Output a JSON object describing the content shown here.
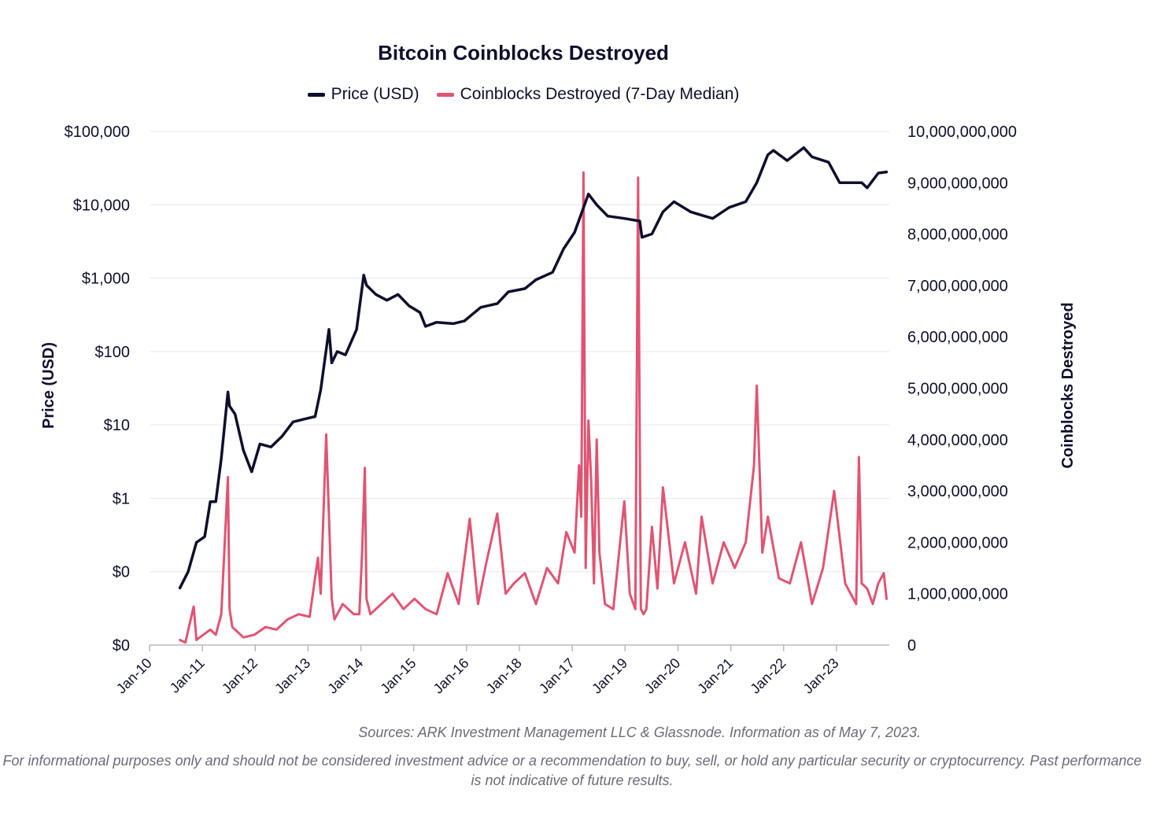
{
  "chart_data": {
    "type": "line",
    "title": "Bitcoin Coinblocks Destroyed",
    "legend_position": "top-center",
    "grid": true,
    "x_ticks": [
      "Jan-10",
      "Jan-11",
      "Jan-12",
      "Jan-13",
      "Jan-14",
      "Jan-15",
      "Jan-16",
      "Jan-18",
      "Jan-17",
      "Jan-19",
      "Jan-20",
      "Jan-21",
      "Jan-22",
      "Jan-23"
    ],
    "y_left": {
      "label": "Price (USD)",
      "scale": "log",
      "ticks": [
        "$0",
        "$0",
        "$1",
        "$10",
        "$100",
        "$1,000",
        "$10,000",
        "$100,000"
      ]
    },
    "y_right": {
      "label": "Coinblocks Destroyed",
      "ylim": [
        0,
        10000000000
      ],
      "ticks": [
        "0",
        "1,000,000,000",
        "2,000,000,000",
        "3,000,000,000",
        "4,000,000,000",
        "5,000,000,000",
        "6,000,000,000",
        "7,000,000,000",
        "8,000,000,000",
        "9,000,000,000",
        "10,000,000,000"
      ]
    },
    "series": [
      {
        "name": "Price (USD)",
        "color": "#0f0f2d",
        "axis": "left",
        "x": [
          2010.55,
          2010.7,
          2010.85,
          2011.0,
          2011.1,
          2011.2,
          2011.3,
          2011.42,
          2011.45,
          2011.55,
          2011.7,
          2011.85,
          2012.0,
          2012.2,
          2012.4,
          2012.6,
          2012.8,
          2013.0,
          2013.1,
          2013.25,
          2013.3,
          2013.4,
          2013.55,
          2013.75,
          2013.88,
          2013.93,
          2014.1,
          2014.3,
          2014.5,
          2014.7,
          2014.9,
          2015.0,
          2015.2,
          2015.5,
          2015.7,
          2016.0,
          2016.3,
          2016.5,
          2016.8,
          2017.0,
          2017.3,
          2017.5,
          2017.7,
          2017.95,
          2018.1,
          2018.3,
          2018.6,
          2018.88,
          2018.92,
          2019.1,
          2019.3,
          2019.5,
          2019.8,
          2020.0,
          2020.2,
          2020.5,
          2020.8,
          2021.0,
          2021.2,
          2021.3,
          2021.55,
          2021.85,
          2022.0,
          2022.3,
          2022.5,
          2022.7,
          2022.9,
          2023.0,
          2023.2,
          2023.35
        ],
        "y": [
          0.06,
          0.1,
          0.25,
          0.3,
          0.9,
          0.9,
          3.5,
          28,
          18,
          14,
          4.5,
          2.3,
          5.5,
          5,
          7,
          11,
          12,
          13,
          30,
          200,
          70,
          100,
          90,
          200,
          1100,
          800,
          600,
          500,
          600,
          420,
          340,
          220,
          250,
          240,
          260,
          400,
          450,
          650,
          720,
          950,
          1200,
          2500,
          4200,
          14000,
          10000,
          7000,
          6500,
          6000,
          3600,
          4000,
          8000,
          11000,
          8000,
          7200,
          6500,
          9200,
          11000,
          20000,
          48000,
          55000,
          40000,
          60000,
          45000,
          38000,
          20000,
          20000,
          20000,
          17000,
          27000,
          28000
        ]
      },
      {
        "name": "Coinblocks Destroyed (7-Day Median)",
        "color": "#e05472",
        "axis": "right",
        "x": [
          2010.55,
          2010.65,
          2010.8,
          2010.85,
          2010.95,
          2011.1,
          2011.2,
          2011.3,
          2011.42,
          2011.45,
          2011.5,
          2011.7,
          2011.9,
          2012.1,
          2012.3,
          2012.5,
          2012.7,
          2012.9,
          2013.05,
          2013.1,
          2013.2,
          2013.3,
          2013.35,
          2013.5,
          2013.7,
          2013.8,
          2013.85,
          2013.9,
          2013.93,
          2014.0,
          2014.2,
          2014.4,
          2014.6,
          2014.8,
          2015.0,
          2015.2,
          2015.4,
          2015.6,
          2015.8,
          2015.95,
          2016.1,
          2016.3,
          2016.45,
          2016.6,
          2016.8,
          2017.0,
          2017.2,
          2017.4,
          2017.55,
          2017.7,
          2017.78,
          2017.82,
          2017.86,
          2017.9,
          2017.95,
          2018.0,
          2018.05,
          2018.1,
          2018.15,
          2018.25,
          2018.4,
          2018.6,
          2018.7,
          2018.8,
          2018.85,
          2018.9,
          2018.95,
          2019.0,
          2019.1,
          2019.2,
          2019.3,
          2019.5,
          2019.7,
          2019.9,
          2020.0,
          2020.2,
          2020.4,
          2020.6,
          2020.8,
          2020.95,
          2021.0,
          2021.1,
          2021.2,
          2021.4,
          2021.6,
          2021.8,
          2022.0,
          2022.2,
          2022.4,
          2022.6,
          2022.8,
          2022.85,
          2022.9,
          2023.0,
          2023.1,
          2023.2,
          2023.3,
          2023.35
        ],
        "y": [
          100000000,
          50000000,
          750000000,
          100000000,
          180000000,
          300000000,
          200000000,
          600000000,
          3270000000,
          700000000,
          350000000,
          150000000,
          200000000,
          350000000,
          300000000,
          500000000,
          600000000,
          550000000,
          1700000000,
          1000000000,
          4100000000,
          900000000,
          500000000,
          800000000,
          600000000,
          600000000,
          1800000000,
          3450000000,
          900000000,
          600000000,
          800000000,
          1000000000,
          700000000,
          900000000,
          700000000,
          600000000,
          1400000000,
          800000000,
          2460000000,
          800000000,
          1600000000,
          2560000000,
          1000000000,
          1200000000,
          1400000000,
          800000000,
          1500000000,
          1200000000,
          2200000000,
          1800000000,
          3500000000,
          2500000000,
          9200000000,
          1500000000,
          4370000000,
          3200000000,
          1200000000,
          4000000000,
          1800000000,
          800000000,
          700000000,
          2800000000,
          1000000000,
          700000000,
          9100000000,
          700000000,
          600000000,
          700000000,
          2300000000,
          1100000000,
          3070000000,
          1200000000,
          2000000000,
          1000000000,
          2500000000,
          1200000000,
          2000000000,
          1500000000,
          2000000000,
          3500000000,
          5050000000,
          1800000000,
          2500000000,
          1300000000,
          1200000000,
          2000000000,
          800000000,
          1500000000,
          3000000000,
          1200000000,
          800000000,
          3660000000,
          1200000000,
          1100000000,
          800000000,
          1200000000,
          1400000000,
          900000000
        ]
      }
    ]
  },
  "sources": "Sources: ARK Investment Management LLC & Glassnode. Information as of May 7, 2023.",
  "disclaimer": "For informational purposes only and should not be considered investment advice or a recommendation to buy, sell, or hold any particular security or cryptocurrency. Past performance is not indicative of future results."
}
